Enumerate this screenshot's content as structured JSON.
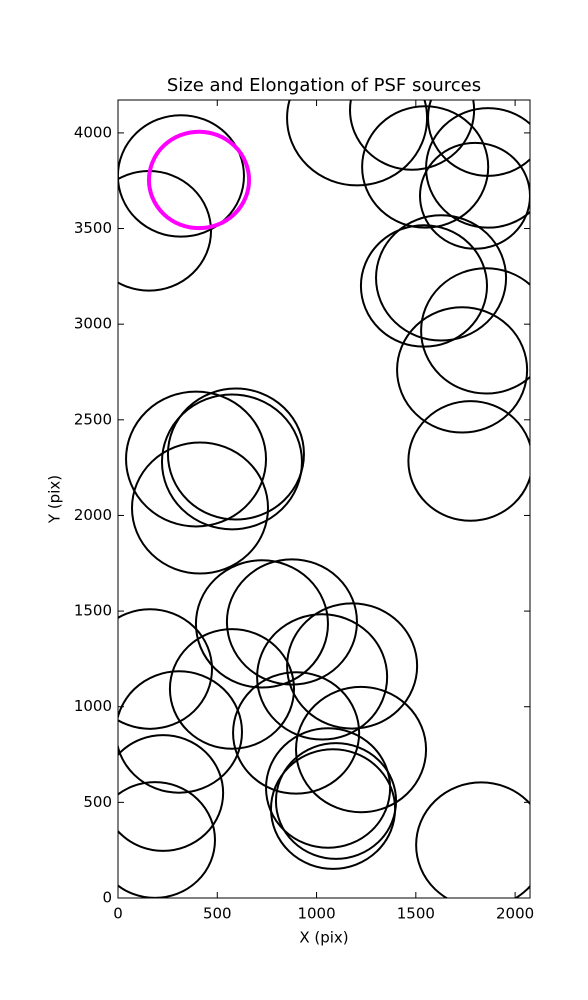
{
  "chart_data": {
    "type": "ellipse",
    "title": "Size and Elongation of PSF sources",
    "x_label": "X (pix)",
    "y_label": "Y (pix)",
    "xlim": [
      0,
      2075
    ],
    "ylim": [
      0,
      4172
    ],
    "xticks": [
      0,
      500,
      1000,
      1500,
      2000
    ],
    "yticks": [
      0,
      500,
      1000,
      1500,
      2000,
      2500,
      3000,
      3500,
      4000
    ],
    "series": [
      {
        "color": "#000000",
        "linewidth": 2,
        "x": [
          317,
          156,
          1204,
          1481,
          1547,
          1864,
          1864,
          1798,
          1541,
          1627,
          1854,
          1733,
          1775,
          393,
          594,
          574,
          413,
          725,
          876,
          161,
          574,
          307,
          897,
          1028,
          1179,
          1224,
          1058,
          1083,
          1098,
          227,
          186,
          1829
        ],
        "y": [
          3775,
          3488,
          4078,
          4120,
          3822,
          4078,
          3817,
          3671,
          3200,
          3242,
          2965,
          2761,
          2285,
          2295,
          2321,
          2280,
          2039,
          1433,
          1443,
          1197,
          1093,
          868,
          863,
          1156,
          1213,
          776,
          575,
          465,
          507,
          549,
          303,
          277
        ],
        "sizes": [
          635,
          625,
          705,
          625,
          635,
          605,
          625,
          554,
          635,
          655,
          655,
          655,
          625,
          705,
          685,
          705,
          685,
          665,
          655,
          625,
          625,
          635,
          635,
          655,
          655,
          655,
          625,
          625,
          605,
          605,
          605,
          655
        ]
      },
      {
        "color": "#ff00ff",
        "linewidth": 4,
        "x": [
          408
        ],
        "y": [
          3754
        ],
        "sizes": [
          504
        ]
      }
    ]
  }
}
